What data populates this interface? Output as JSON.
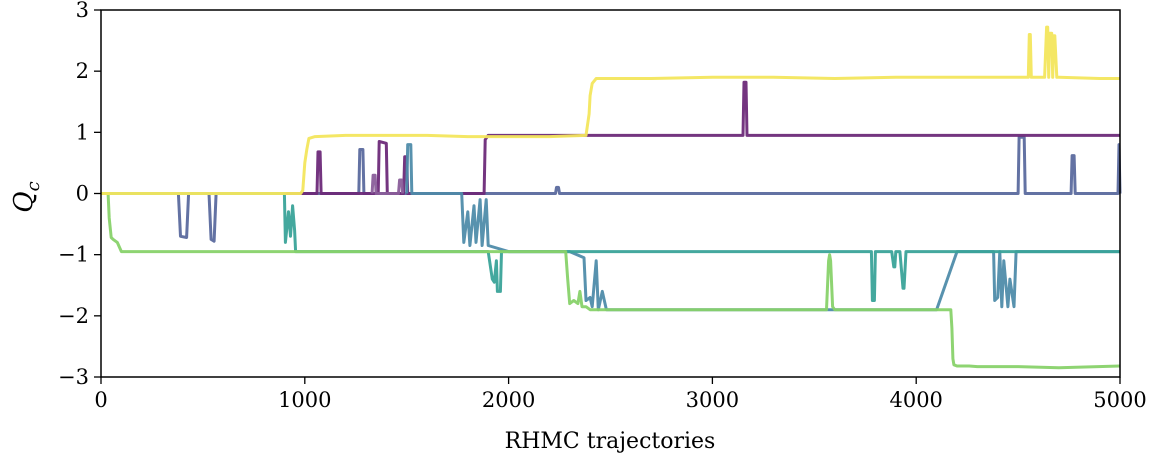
{
  "chart_data": {
    "type": "line",
    "xlabel": "RHMC trajectories",
    "ylabel": "Q",
    "ylabel_subscript": "c",
    "xlim": [
      0,
      5000
    ],
    "ylim": [
      -3,
      3
    ],
    "xticks": [
      0,
      1000,
      2000,
      3000,
      4000,
      5000
    ],
    "xtick_labels": [
      "0",
      "1000",
      "2000",
      "3000",
      "4000",
      "5000"
    ],
    "yticks": [
      -3,
      -2,
      -1,
      0,
      1,
      2,
      3
    ],
    "ytick_labels": [
      "−3",
      "−2",
      "−1",
      "0",
      "1",
      "2",
      "3"
    ],
    "grid": false,
    "legend": "none",
    "series": [
      {
        "color": "#5b6a9e",
        "x": [
          0,
          380,
          390,
          420,
          430,
          530,
          540,
          555,
          565,
          1000,
          1265,
          1270,
          1285,
          1290,
          1300,
          2000,
          2230,
          2235,
          2245,
          2250,
          4500,
          4505,
          4530,
          4535,
          4760,
          4765,
          4775,
          4780,
          4990,
          4995,
          5000
        ],
        "y": [
          0,
          0,
          -0.7,
          -0.72,
          0,
          0,
          -0.75,
          -0.78,
          0,
          0,
          0,
          0.72,
          0.72,
          0,
          0,
          0,
          0,
          0.1,
          0.1,
          0,
          0,
          0.92,
          0.92,
          0,
          0,
          0.62,
          0.62,
          0,
          0,
          0.8,
          0
        ]
      },
      {
        "color": "#6d2a79",
        "x": [
          0,
          1060,
          1065,
          1075,
          1080,
          1360,
          1365,
          1400,
          1405,
          1485,
          1490,
          1500,
          1505,
          1880,
          1885,
          1900,
          3150,
          3155,
          3165,
          3170,
          5000
        ],
        "y": [
          0,
          0,
          0.68,
          0.68,
          0,
          0,
          0.85,
          0.82,
          0,
          0,
          0.6,
          0.6,
          0,
          0,
          0.88,
          0.95,
          0.95,
          1.82,
          1.82,
          0.95,
          0.95
        ]
      },
      {
        "color": "#8a5e9a",
        "x": [
          1330,
          1335,
          1345,
          1350,
          1460,
          1465,
          1475,
          1480
        ],
        "y": [
          0,
          0.3,
          0.3,
          0,
          0,
          0.22,
          0.22,
          0
        ]
      },
      {
        "color": "#4f8caa",
        "x": [
          1500,
          1505,
          1520,
          1525,
          1770,
          1780,
          1800,
          1810,
          1830,
          1840,
          1860,
          1870,
          1890,
          1900,
          2000,
          2300,
          2370,
          2380,
          2400,
          2410,
          2430,
          2440,
          2460,
          2480,
          2500,
          2560,
          4100,
          4200,
          4380,
          4385,
          4400,
          4410,
          4420,
          4430,
          4450,
          4460,
          4480,
          4490,
          5000
        ],
        "y": [
          0,
          0.8,
          0.8,
          0,
          0,
          -0.8,
          -0.3,
          -0.85,
          -0.2,
          -0.8,
          -0.1,
          -0.85,
          -0.1,
          -0.85,
          -0.95,
          -0.95,
          -1.05,
          -1.75,
          -1.7,
          -1.85,
          -1.1,
          -1.9,
          -1.6,
          -1.9,
          -1.9,
          -1.9,
          -1.9,
          -0.95,
          -0.95,
          -1.75,
          -1.7,
          -0.95,
          -1.85,
          -1.1,
          -1.85,
          -1.4,
          -1.85,
          -0.95,
          -0.95
        ]
      },
      {
        "color": "#3aa399",
        "x": [
          0,
          900,
          905,
          920,
          930,
          940,
          950,
          955,
          1900,
          1920,
          1930,
          1940,
          1945,
          1960,
          1965,
          2000,
          2900,
          3000,
          3700,
          3750,
          3780,
          3785,
          3795,
          3800,
          3880,
          3890,
          3895,
          3900,
          3920,
          3935,
          3940,
          3950,
          5000
        ],
        "y": [
          0,
          0,
          -0.8,
          -0.3,
          -0.7,
          -0.2,
          -0.6,
          -0.95,
          -0.95,
          -1.4,
          -1.45,
          -1.1,
          -1.6,
          -1.6,
          -0.95,
          -0.95,
          -0.95,
          -0.95,
          -0.95,
          -0.95,
          -0.95,
          -1.75,
          -1.75,
          -0.95,
          -0.95,
          -1.2,
          -1.2,
          -0.95,
          -0.95,
          -1.55,
          -1.55,
          -0.95,
          -0.95
        ]
      },
      {
        "color": "#88d26a",
        "x": [
          0,
          35,
          40,
          50,
          60,
          80,
          100,
          500,
          1000,
          2000,
          2280,
          2290,
          2300,
          2320,
          2340,
          2350,
          2360,
          2380,
          2400,
          3500,
          3560,
          3570,
          3575,
          3580,
          3590,
          3600,
          4170,
          4175,
          4180,
          4185,
          4200,
          4260,
          4300,
          4500,
          4700,
          5000
        ],
        "y": [
          0,
          0,
          -0.4,
          -0.72,
          -0.75,
          -0.8,
          -0.95,
          -0.95,
          -0.95,
          -0.95,
          -0.95,
          -1.4,
          -1.8,
          -1.75,
          -1.8,
          -1.6,
          -1.85,
          -1.85,
          -1.9,
          -1.9,
          -1.9,
          -1.1,
          -1.0,
          -1.1,
          -1.85,
          -1.9,
          -1.9,
          -2.2,
          -2.7,
          -2.8,
          -2.82,
          -2.82,
          -2.83,
          -2.83,
          -2.85,
          -2.82
        ]
      },
      {
        "color": "#f3e65d",
        "x": [
          0,
          980,
          990,
          1000,
          1010,
          1020,
          1050,
          1200,
          1400,
          1600,
          1800,
          2000,
          2200,
          2380,
          2395,
          2400,
          2410,
          2430,
          2450,
          2700,
          3000,
          3300,
          3600,
          3900,
          4200,
          4500,
          4550,
          4555,
          4560,
          4565,
          4575,
          4630,
          4640,
          4645,
          4650,
          4655,
          4665,
          4670,
          4675,
          4680,
          4690,
          4700,
          4900,
          5000
        ],
        "y": [
          0,
          0,
          0.05,
          0.5,
          0.72,
          0.9,
          0.93,
          0.95,
          0.95,
          0.95,
          0.93,
          0.93,
          0.93,
          0.95,
          1.3,
          1.6,
          1.8,
          1.88,
          1.88,
          1.88,
          1.9,
          1.9,
          1.88,
          1.9,
          1.9,
          1.9,
          1.9,
          2.6,
          2.6,
          1.9,
          1.9,
          1.9,
          2.72,
          2.72,
          1.9,
          2.62,
          2.62,
          1.9,
          2.58,
          2.58,
          1.9,
          1.9,
          1.88,
          1.88
        ]
      }
    ]
  }
}
